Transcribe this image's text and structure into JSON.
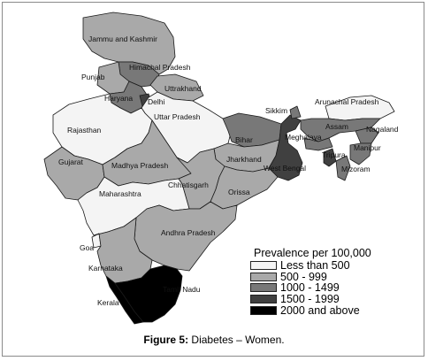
{
  "caption": {
    "prefix": "Figure 5:",
    "text": " Diabetes – Women."
  },
  "legend": {
    "title": "Prevalence per 100,000",
    "classes": [
      {
        "label": "Less than 500",
        "color": "#f4f4f4"
      },
      {
        "label": "500 - 999",
        "color": "#a9a9a9"
      },
      {
        "label": "1000 - 1499",
        "color": "#787878"
      },
      {
        "label": "1500 - 1999",
        "color": "#404040"
      },
      {
        "label": "2000 and above",
        "color": "#000000"
      }
    ]
  },
  "states": {
    "jammu_kashmir": {
      "label": "Jammu and Kashmir",
      "level": "500 - 999"
    },
    "himachal": {
      "label": "Himachal Pradesh",
      "level": "1000 - 1499"
    },
    "punjab": {
      "label": "Punjab",
      "level": "500 - 999"
    },
    "uttarakhand": {
      "label": "Uttarakhand",
      "level": "500 - 999"
    },
    "haryana": {
      "label": "Haryana",
      "level": "1000 - 1499"
    },
    "delhi": {
      "label": "Delhi",
      "level": "1500 - 1999"
    },
    "uttar_pradesh": {
      "label": "Uttar Pradesh",
      "level": "Less than 500"
    },
    "rajasthan": {
      "label": "Rajasthan",
      "level": "Less than 500"
    },
    "gujarat": {
      "label": "Gujarat",
      "level": "500 - 999"
    },
    "madhya_pradesh": {
      "label": "Madhya Pradesh",
      "level": "500 - 999"
    },
    "bihar": {
      "label": "Bihar",
      "level": "1000 - 1499"
    },
    "jharkhand": {
      "label": "Jharkhand",
      "level": "500 - 999"
    },
    "west_bengal": {
      "label": "West Bengal",
      "level": "1500 - 1999"
    },
    "chhattisgarh": {
      "label": "Chhattisgarh",
      "level": "500 - 999"
    },
    "orissa": {
      "label": "Orissa",
      "level": "500 - 999"
    },
    "maharashtra": {
      "label": "Maharashtra",
      "level": "Less than 500"
    },
    "andhra_pradesh": {
      "label": "Andhra Pradesh",
      "level": "500 - 999"
    },
    "goa": {
      "label": "Goa",
      "level": "Less than 500"
    },
    "karnataka": {
      "label": "Karnataka",
      "level": "500 - 999"
    },
    "kerala": {
      "label": "Kerala",
      "level": "2000 and above"
    },
    "tamil_nadu": {
      "label": "Tamil Nadu",
      "level": "2000 and above"
    },
    "sikkim": {
      "label": "Sikkim",
      "level": "1000 - 1499"
    },
    "arunachal": {
      "label": "Arunachal Pradesh",
      "level": "Less than 500"
    },
    "assam": {
      "label": "Assam",
      "level": "1000 - 1499"
    },
    "meghalaya": {
      "label": "Meghalaya",
      "level": "1000 - 1499"
    },
    "nagaland": {
      "label": "Nagaland",
      "level": "1000 - 1499"
    },
    "manipur": {
      "label": "Manipur",
      "level": "1000 - 1499"
    },
    "tripura": {
      "label": "Tripura",
      "level": "1500 - 1999"
    },
    "mizoram": {
      "label": "Mizoram",
      "level": "1000 - 1499"
    }
  },
  "label_text": {
    "jammu_kashmir": "Jammu and Kashmir",
    "himachal": "Himachal Pradesh",
    "punjab": "Punjab",
    "uttarakhand": "Uttrakhand",
    "haryana": "Haryana",
    "delhi": "Delhi",
    "uttar_pradesh": "Uttar Pradesh",
    "rajasthan": "Rajasthan",
    "gujarat": "Gujarat",
    "madhya_pradesh": "Madhya Pradesh",
    "bihar": "Bihar",
    "jharkhand": "Jharkhand",
    "west_bengal": "West Bengal",
    "chhattisgarh": "Chhatisgarh",
    "orissa": "Orissa",
    "maharashtra": "Maharashtra",
    "andhra_pradesh": "Andhra Pradesh",
    "goa": "Goa",
    "karnataka": "Karnataka",
    "kerala": "Kerala",
    "tamil_nadu": "Tamil Nadu",
    "sikkim": "Sikkim",
    "arunachal": "Arunachal Pradesh",
    "assam": "Assam",
    "meghalaya": "Meghalaya",
    "nagaland": "Nagaland",
    "manipur": "Manipur",
    "tripura": "Tripura",
    "mizoram": "Mizoram"
  }
}
